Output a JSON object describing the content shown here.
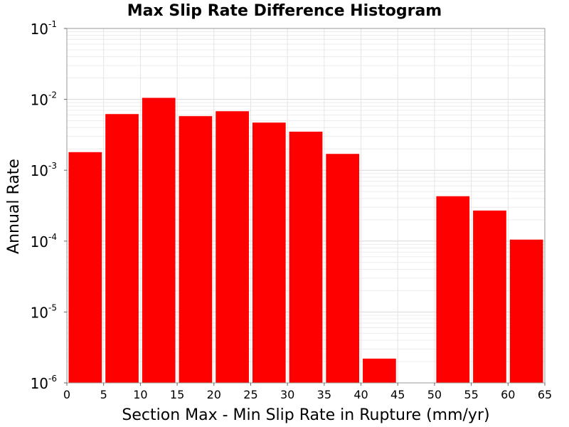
{
  "chart_data": {
    "type": "bar",
    "title": "Max Slip Rate Difference Histogram",
    "xlabel": "Section Max - Min Slip Rate in Rupture (mm/yr)",
    "ylabel": "Annual Rate",
    "y_scale": "log",
    "xlim": [
      0,
      65
    ],
    "ylim": [
      1e-06,
      0.1
    ],
    "x_ticks": [
      "0",
      "5",
      "10",
      "15",
      "20",
      "25",
      "30",
      "35",
      "40",
      "45",
      "50",
      "55",
      "60",
      "65"
    ],
    "y_ticks": [
      {
        "base": "10",
        "exp": "-6",
        "value": 1e-06
      },
      {
        "base": "10",
        "exp": "-5",
        "value": 1e-05
      },
      {
        "base": "10",
        "exp": "-4",
        "value": 0.0001
      },
      {
        "base": "10",
        "exp": "-3",
        "value": 0.001
      },
      {
        "base": "10",
        "exp": "-2",
        "value": 0.01
      },
      {
        "base": "10",
        "exp": "-1",
        "value": 0.1
      }
    ],
    "grid": true,
    "bar_color": "#ff0000",
    "bins": [
      {
        "x0": 0,
        "x1": 5,
        "value": 0.0018
      },
      {
        "x0": 5,
        "x1": 10,
        "value": 0.0062
      },
      {
        "x0": 10,
        "x1": 15,
        "value": 0.0105
      },
      {
        "x0": 15,
        "x1": 20,
        "value": 0.0058
      },
      {
        "x0": 20,
        "x1": 25,
        "value": 0.0068
      },
      {
        "x0": 25,
        "x1": 30,
        "value": 0.0047
      },
      {
        "x0": 30,
        "x1": 35,
        "value": 0.0035
      },
      {
        "x0": 35,
        "x1": 40,
        "value": 0.0017
      },
      {
        "x0": 40,
        "x1": 45,
        "value": 2.2e-06
      },
      {
        "x0": 50,
        "x1": 55,
        "value": 0.00043
      },
      {
        "x0": 55,
        "x1": 60,
        "value": 0.00027
      },
      {
        "x0": 60,
        "x1": 65,
        "value": 0.000105
      }
    ]
  }
}
